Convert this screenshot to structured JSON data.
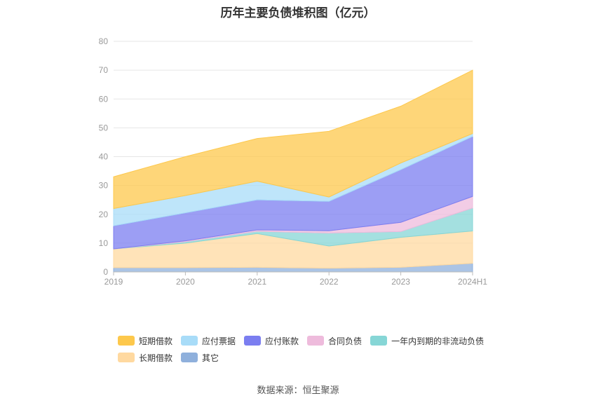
{
  "chart_data": {
    "type": "area",
    "stacked": true,
    "title": "历年主要负债堆积图（亿元）",
    "source": "数据来源：恒生聚源",
    "categories": [
      "2019",
      "2020",
      "2021",
      "2022",
      "2023",
      "2024H1"
    ],
    "yticks": [
      "0",
      "10",
      "20",
      "30",
      "40",
      "50",
      "60",
      "70",
      "80"
    ],
    "ylim": [
      0,
      80
    ],
    "grid": true,
    "legend_position": "bottom",
    "series": [
      {
        "name": "其它",
        "color": "#8fb0dc",
        "values": [
          1.5,
          1.5,
          1.6,
          1.3,
          1.6,
          3.0
        ]
      },
      {
        "name": "长期借款",
        "color": "#ffd9a0",
        "values": [
          6.5,
          8.5,
          11.7,
          7.7,
          10.4,
          11.2
        ]
      },
      {
        "name": "一年内到期的非流动负债",
        "color": "#86d6d6",
        "values": [
          0,
          0.5,
          0.8,
          4.5,
          2.0,
          8.0
        ]
      },
      {
        "name": "合同负债",
        "color": "#eebbdc",
        "values": [
          0,
          0.3,
          0.5,
          0.8,
          3.2,
          4.0
        ]
      },
      {
        "name": "应付账款",
        "color": "#7b7ef0",
        "values": [
          8.0,
          9.7,
          10.4,
          10.2,
          18.3,
          20.8
        ]
      },
      {
        "name": "应付票据",
        "color": "#a8dcf8",
        "values": [
          6.0,
          6.0,
          6.5,
          1.5,
          2.3,
          1.0
        ]
      },
      {
        "name": "短期借款",
        "color": "#fdc84c",
        "values": [
          11.0,
          13.5,
          14.8,
          22.8,
          19.7,
          22.0
        ]
      }
    ],
    "legend_rows": [
      [
        "短期借款",
        "应付票据",
        "应付账款",
        "合同负债",
        "一年内到期的非流动负债"
      ],
      [
        "长期借款",
        "其它"
      ]
    ]
  }
}
